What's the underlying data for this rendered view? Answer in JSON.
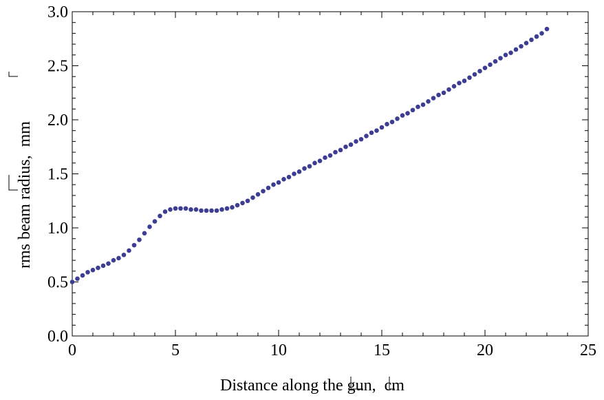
{
  "chart_data": {
    "type": "scatter",
    "title": "",
    "xlabel": "Distance along the gun, ",
    "xlabel_unit": "cm",
    "ylabel": "rms beam radius, ",
    "ylabel_unit": "mm",
    "xlim": [
      0,
      25
    ],
    "ylim": [
      0,
      3.0
    ],
    "xticks": [
      0,
      5,
      10,
      15,
      20,
      25
    ],
    "xtick_labels": [
      "0",
      "5",
      "10",
      "15",
      "20",
      "25"
    ],
    "yticks": [
      0.0,
      0.5,
      1.0,
      1.5,
      2.0,
      2.5,
      3.0
    ],
    "ytick_labels": [
      "0.0",
      "0.5",
      "1.0",
      "1.5",
      "2.0",
      "2.5",
      "3.0"
    ],
    "grid": false,
    "marker_color": "#3d3d94",
    "series": [
      {
        "x": [
          0.0,
          0.25,
          0.5,
          0.75,
          1.0,
          1.25,
          1.5,
          1.75,
          2.0,
          2.25,
          2.5,
          2.75,
          3.0,
          3.25,
          3.5,
          3.75,
          4.0,
          4.25,
          4.5,
          4.75,
          5.0,
          5.25,
          5.5,
          5.75,
          6.0,
          6.25,
          6.5,
          6.75,
          7.0,
          7.25,
          7.5,
          7.75,
          8.0,
          8.25,
          8.5,
          8.75,
          9.0,
          9.25,
          9.5,
          9.75,
          10.0,
          10.25,
          10.5,
          10.75,
          11.0,
          11.25,
          11.5,
          11.75,
          12.0,
          12.25,
          12.5,
          12.75,
          13.0,
          13.25,
          13.5,
          13.75,
          14.0,
          14.25,
          14.5,
          14.75,
          15.0,
          15.25,
          15.5,
          15.75,
          16.0,
          16.25,
          16.5,
          16.75,
          17.0,
          17.25,
          17.5,
          17.75,
          18.0,
          18.25,
          18.5,
          18.75,
          19.0,
          19.25,
          19.5,
          19.75,
          20.0,
          20.25,
          20.5,
          20.75,
          21.0,
          21.25,
          21.5,
          21.75,
          22.0,
          22.25,
          22.5,
          22.75,
          23.0
        ],
        "y": [
          0.5,
          0.53,
          0.56,
          0.59,
          0.61,
          0.63,
          0.65,
          0.67,
          0.7,
          0.72,
          0.75,
          0.79,
          0.84,
          0.89,
          0.95,
          1.01,
          1.06,
          1.11,
          1.15,
          1.17,
          1.18,
          1.18,
          1.18,
          1.17,
          1.17,
          1.16,
          1.16,
          1.16,
          1.16,
          1.17,
          1.18,
          1.19,
          1.21,
          1.23,
          1.25,
          1.28,
          1.31,
          1.34,
          1.37,
          1.4,
          1.42,
          1.45,
          1.47,
          1.5,
          1.52,
          1.55,
          1.57,
          1.6,
          1.62,
          1.65,
          1.67,
          1.7,
          1.72,
          1.75,
          1.77,
          1.8,
          1.82,
          1.85,
          1.88,
          1.9,
          1.93,
          1.96,
          1.98,
          2.01,
          2.04,
          2.06,
          2.09,
          2.12,
          2.14,
          2.17,
          2.2,
          2.23,
          2.25,
          2.28,
          2.31,
          2.34,
          2.36,
          2.39,
          2.42,
          2.45,
          2.48,
          2.51,
          2.54,
          2.57,
          2.6,
          2.62,
          2.65,
          2.68,
          2.71,
          2.74,
          2.77,
          2.8,
          2.84
        ]
      }
    ]
  }
}
